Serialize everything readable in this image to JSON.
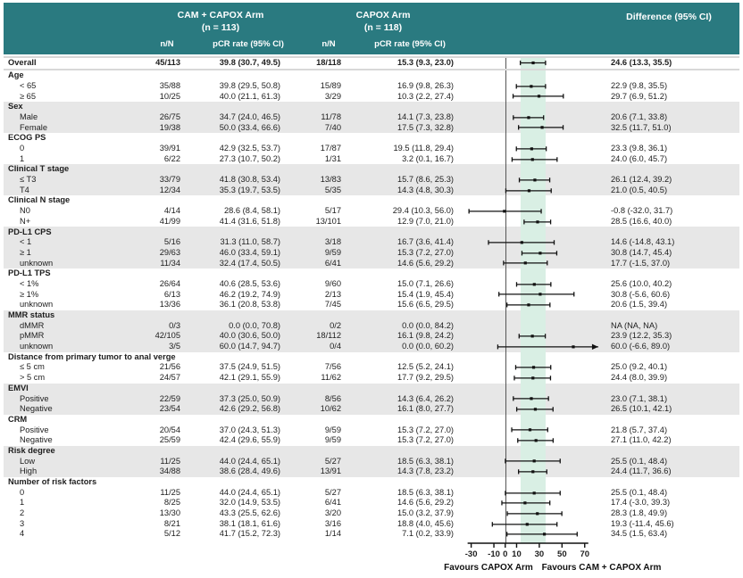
{
  "colors": {
    "teal": "#2a7a80",
    "shade": "#e7e7e7",
    "band": "#d9efe4",
    "marker": "#111111",
    "zero_line": "#555555"
  },
  "header": {
    "arm1_title": "CAM + CAPOX Arm",
    "arm1_n": "(n = 113)",
    "arm2_title": "CAPOX Arm",
    "arm2_n": "(n = 118)",
    "nn_label": "n/N",
    "pcr_label": "pCR rate (95% CI)",
    "diff_label": "Difference (95% CI)"
  },
  "chart_data": {
    "type": "forest",
    "axis": {
      "min": -36,
      "max": 82,
      "ticks": [
        -30,
        -10,
        0,
        10,
        30,
        50,
        70
      ],
      "band": [
        13.3,
        35.5
      ],
      "zero": 0
    },
    "footer": {
      "left": "Favours CAPOX Arm",
      "right": "Favours CAM + CAPOX Arm"
    },
    "rows": [
      {
        "t": "d",
        "overall": true,
        "bold": true,
        "shade": false,
        "label": "Overall",
        "n1": "45/113",
        "p1": "39.8 (30.7, 49.5)",
        "n2": "18/118",
        "p2": "15.3 (9.3, 23.0)",
        "diff": "24.6 (13.3, 35.5)",
        "est": 24.6,
        "lo": 13.3,
        "hi": 35.5
      },
      {
        "t": "s",
        "shade": false,
        "label": "Age"
      },
      {
        "t": "d",
        "shade": false,
        "label": "< 65",
        "n1": "35/88",
        "p1": "39.8 (29.5, 50.8)",
        "n2": "15/89",
        "p2": "16.9 (9.8, 26.3)",
        "diff": "22.9 (9.8, 35.5)",
        "est": 22.9,
        "lo": 9.8,
        "hi": 35.5
      },
      {
        "t": "d",
        "shade": false,
        "label": "≥ 65",
        "n1": "10/25",
        "p1": "40.0 (21.1, 61.3)",
        "n2": "3/29",
        "p2": "10.3 (2.2, 27.4)",
        "diff": "29.7 (6.9, 51.2)",
        "est": 29.7,
        "lo": 6.9,
        "hi": 51.2
      },
      {
        "t": "s",
        "shade": true,
        "label": "Sex"
      },
      {
        "t": "d",
        "shade": true,
        "label": "Male",
        "n1": "26/75",
        "p1": "34.7 (24.0, 46.5)",
        "n2": "11/78",
        "p2": "14.1 (7.3, 23.8)",
        "diff": "20.6 (7.1, 33.8)",
        "est": 20.6,
        "lo": 7.1,
        "hi": 33.8
      },
      {
        "t": "d",
        "shade": true,
        "label": "Female",
        "n1": "19/38",
        "p1": "50.0 (33.4, 66.6)",
        "n2": "7/40",
        "p2": "17.5 (7.3, 32.8)",
        "diff": "32.5 (11.7, 51.0)",
        "est": 32.5,
        "lo": 11.7,
        "hi": 51.0
      },
      {
        "t": "s",
        "shade": false,
        "label": "ECOG PS"
      },
      {
        "t": "d",
        "shade": false,
        "label": "0",
        "n1": "39/91",
        "p1": "42.9 (32.5, 53.7)",
        "n2": "17/87",
        "p2": "19.5 (11.8, 29.4)",
        "diff": "23.3 (9.8, 36.1)",
        "est": 23.3,
        "lo": 9.8,
        "hi": 36.1
      },
      {
        "t": "d",
        "shade": false,
        "label": "1",
        "n1": "6/22",
        "p1": "27.3 (10.7, 50.2)",
        "n2": "1/31",
        "p2": "3.2 (0.1, 16.7)",
        "diff": "24.0 (6.0, 45.7)",
        "est": 24.0,
        "lo": 6.0,
        "hi": 45.7
      },
      {
        "t": "s",
        "shade": true,
        "label": "Clinical T stage"
      },
      {
        "t": "d",
        "shade": true,
        "label": "≤ T3",
        "n1": "33/79",
        "p1": "41.8 (30.8, 53.4)",
        "n2": "13/83",
        "p2": "15.7 (8.6, 25.3)",
        "diff": "26.1 (12.4, 39.2)",
        "est": 26.1,
        "lo": 12.4,
        "hi": 39.2
      },
      {
        "t": "d",
        "shade": true,
        "label": "T4",
        "n1": "12/34",
        "p1": "35.3 (19.7, 53.5)",
        "n2": "5/35",
        "p2": "14.3 (4.8, 30.3)",
        "diff": "21.0 (0.5, 40.5)",
        "est": 21.0,
        "lo": 0.5,
        "hi": 40.5
      },
      {
        "t": "s",
        "shade": false,
        "label": "Clinical N stage"
      },
      {
        "t": "d",
        "shade": false,
        "label": "N0",
        "n1": "4/14",
        "p1": "28.6 (8.4, 58.1)",
        "n2": "5/17",
        "p2": "29.4 (10.3, 56.0)",
        "diff": "-0.8 (-32.0, 31.7)",
        "est": -0.8,
        "lo": -32.0,
        "hi": 31.7
      },
      {
        "t": "d",
        "shade": false,
        "label": "N+",
        "n1": "41/99",
        "p1": "41.4 (31.6, 51.8)",
        "n2": "13/101",
        "p2": "12.9 (7.0, 21.0)",
        "diff": "28.5 (16.6, 40.0)",
        "est": 28.5,
        "lo": 16.6,
        "hi": 40.0
      },
      {
        "t": "s",
        "shade": true,
        "label": "PD-L1 CPS"
      },
      {
        "t": "d",
        "shade": true,
        "label": "< 1",
        "n1": "5/16",
        "p1": "31.3 (11.0, 58.7)",
        "n2": "3/18",
        "p2": "16.7 (3.6, 41.4)",
        "diff": "14.6 (-14.8, 43.1)",
        "est": 14.6,
        "lo": -14.8,
        "hi": 43.1
      },
      {
        "t": "d",
        "shade": true,
        "label": "≥ 1",
        "n1": "29/63",
        "p1": "46.0 (33.4, 59.1)",
        "n2": "9/59",
        "p2": "15.3 (7.2, 27.0)",
        "diff": "30.8 (14.7, 45.4)",
        "est": 30.8,
        "lo": 14.7,
        "hi": 45.4
      },
      {
        "t": "d",
        "shade": true,
        "label": "unknown",
        "n1": "11/34",
        "p1": "32.4 (17.4, 50.5)",
        "n2": "6/41",
        "p2": "14.6 (5.6, 29.2)",
        "diff": "17.7 (-1.5, 37.0)",
        "est": 17.7,
        "lo": -1.5,
        "hi": 37.0
      },
      {
        "t": "s",
        "shade": false,
        "label": "PD-L1 TPS"
      },
      {
        "t": "d",
        "shade": false,
        "label": "< 1%",
        "n1": "26/64",
        "p1": "40.6 (28.5, 53.6)",
        "n2": "9/60",
        "p2": "15.0 (7.1, 26.6)",
        "diff": "25.6 (10.0, 40.2)",
        "est": 25.6,
        "lo": 10.0,
        "hi": 40.2
      },
      {
        "t": "d",
        "shade": false,
        "label": "≥ 1%",
        "n1": "6/13",
        "p1": "46.2 (19.2, 74.9)",
        "n2": "2/13",
        "p2": "15.4 (1.9, 45.4)",
        "diff": "30.8 (-5.6, 60.6)",
        "est": 30.8,
        "lo": -5.6,
        "hi": 60.6
      },
      {
        "t": "d",
        "shade": false,
        "label": "unknown",
        "n1": "13/36",
        "p1": "36.1 (20.8, 53.8)",
        "n2": "7/45",
        "p2": "15.6 (6.5, 29.5)",
        "diff": "20.6 (1.5, 39.4)",
        "est": 20.6,
        "lo": 1.5,
        "hi": 39.4
      },
      {
        "t": "s",
        "shade": true,
        "label": "MMR status"
      },
      {
        "t": "d",
        "shade": true,
        "label": "dMMR",
        "n1": "0/3",
        "p1": "0.0 (0.0, 70.8)",
        "n2": "0/2",
        "p2": "0.0 (0.0, 84.2)",
        "diff": "NA (NA, NA)",
        "est": null,
        "lo": null,
        "hi": null
      },
      {
        "t": "d",
        "shade": true,
        "label": "pMMR",
        "n1": "42/105",
        "p1": "40.0 (30.6, 50.0)",
        "n2": "18/112",
        "p2": "16.1 (9.8, 24.2)",
        "diff": "23.9 (12.2, 35.3)",
        "est": 23.9,
        "lo": 12.2,
        "hi": 35.3
      },
      {
        "t": "d",
        "shade": true,
        "label": "unknown",
        "n1": "3/5",
        "p1": "60.0 (14.7, 94.7)",
        "n2": "0/4",
        "p2": "0.0 (0.0, 60.2)",
        "diff": "60.0 (-6.6, 89.0)",
        "est": 60.0,
        "lo": -6.6,
        "hi": 89.0
      },
      {
        "t": "s",
        "shade": false,
        "label": "Distance from primary tumor to anal verge"
      },
      {
        "t": "d",
        "shade": false,
        "label": "≤ 5 cm",
        "n1": "21/56",
        "p1": "37.5 (24.9, 51.5)",
        "n2": "7/56",
        "p2": "12.5 (5.2, 24.1)",
        "diff": "25.0 (9.2, 40.1)",
        "est": 25.0,
        "lo": 9.2,
        "hi": 40.1
      },
      {
        "t": "d",
        "shade": false,
        "label": "> 5 cm",
        "n1": "24/57",
        "p1": "42.1 (29.1, 55.9)",
        "n2": "11/62",
        "p2": "17.7 (9.2, 29.5)",
        "diff": "24.4 (8.0, 39.9)",
        "est": 24.4,
        "lo": 8.0,
        "hi": 39.9
      },
      {
        "t": "s",
        "shade": true,
        "label": "EMVI"
      },
      {
        "t": "d",
        "shade": true,
        "label": "Positive",
        "n1": "22/59",
        "p1": "37.3 (25.0, 50.9)",
        "n2": "8/56",
        "p2": "14.3 (6.4, 26.2)",
        "diff": "23.0 (7.1, 38.1)",
        "est": 23.0,
        "lo": 7.1,
        "hi": 38.1
      },
      {
        "t": "d",
        "shade": true,
        "label": "Negative",
        "n1": "23/54",
        "p1": "42.6 (29.2, 56.8)",
        "n2": "10/62",
        "p2": "16.1 (8.0, 27.7)",
        "diff": "26.5 (10.1, 42.1)",
        "est": 26.5,
        "lo": 10.1,
        "hi": 42.1
      },
      {
        "t": "s",
        "shade": false,
        "label": "CRM"
      },
      {
        "t": "d",
        "shade": false,
        "label": "Positive",
        "n1": "20/54",
        "p1": "37.0 (24.3, 51.3)",
        "n2": "9/59",
        "p2": "15.3 (7.2, 27.0)",
        "diff": "21.8 (5.7, 37.4)",
        "est": 21.8,
        "lo": 5.7,
        "hi": 37.4
      },
      {
        "t": "d",
        "shade": false,
        "label": "Negative",
        "n1": "25/59",
        "p1": "42.4 (29.6, 55.9)",
        "n2": "9/59",
        "p2": "15.3 (7.2, 27.0)",
        "diff": "27.1 (11.0, 42.2)",
        "est": 27.1,
        "lo": 11.0,
        "hi": 42.2
      },
      {
        "t": "s",
        "shade": true,
        "label": "Risk degree"
      },
      {
        "t": "d",
        "shade": true,
        "label": "Low",
        "n1": "11/25",
        "p1": "44.0 (24.4, 65.1)",
        "n2": "5/27",
        "p2": "18.5 (6.3, 38.1)",
        "diff": "25.5 (0.1, 48.4)",
        "est": 25.5,
        "lo": 0.1,
        "hi": 48.4
      },
      {
        "t": "d",
        "shade": true,
        "label": "High",
        "n1": "34/88",
        "p1": "38.6 (28.4, 49.6)",
        "n2": "13/91",
        "p2": "14.3 (7.8, 23.2)",
        "diff": "24.4 (11.7, 36.6)",
        "est": 24.4,
        "lo": 11.7,
        "hi": 36.6
      },
      {
        "t": "s",
        "shade": false,
        "label": "Number of risk factors"
      },
      {
        "t": "d",
        "shade": false,
        "label": "0",
        "n1": "11/25",
        "p1": "44.0 (24.4, 65.1)",
        "n2": "5/27",
        "p2": "18.5 (6.3, 38.1)",
        "diff": "25.5 (0.1, 48.4)",
        "est": 25.5,
        "lo": 0.1,
        "hi": 48.4
      },
      {
        "t": "d",
        "shade": false,
        "label": "1",
        "n1": "8/25",
        "p1": "32.0 (14.9, 53.5)",
        "n2": "6/41",
        "p2": "14.6 (5.6, 29.2)",
        "diff": "17.4 (-3.0, 39.3)",
        "est": 17.4,
        "lo": -3.0,
        "hi": 39.3
      },
      {
        "t": "d",
        "shade": false,
        "label": "2",
        "n1": "13/30",
        "p1": "43.3 (25.5, 62.6)",
        "n2": "3/20",
        "p2": "15.0 (3.2, 37.9)",
        "diff": "28.3 (1.8, 49.9)",
        "est": 28.3,
        "lo": 1.8,
        "hi": 49.9
      },
      {
        "t": "d",
        "shade": false,
        "label": "3",
        "n1": "8/21",
        "p1": "38.1 (18.1, 61.6)",
        "n2": "3/16",
        "p2": "18.8 (4.0, 45.6)",
        "diff": "19.3 (-11.4, 45.6)",
        "est": 19.3,
        "lo": -11.4,
        "hi": 45.6
      },
      {
        "t": "d",
        "shade": false,
        "label": "4",
        "n1": "5/12",
        "p1": "41.7 (15.2, 72.3)",
        "n2": "1/14",
        "p2": "7.1 (0.2, 33.9)",
        "diff": "34.5 (1.5, 63.4)",
        "est": 34.5,
        "lo": 1.5,
        "hi": 63.4
      }
    ]
  }
}
